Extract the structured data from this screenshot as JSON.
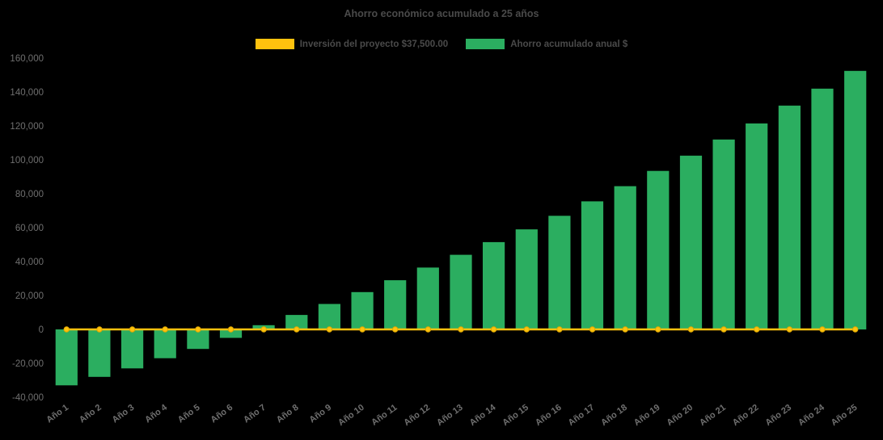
{
  "title": "Ahorro económico acumulado a 25 años",
  "legend": [
    {
      "label": "Inversión del proyecto $37,500.00",
      "color": "#FFC20E"
    },
    {
      "label": "Ahorro acumulado anual $",
      "color": "#2BAE60"
    }
  ],
  "colors": {
    "background": "#000000",
    "title_text": "#4a4a4a",
    "tick_text": "#6f6f6f",
    "bar_green": "#2BAE60",
    "line_yellow": "#FFC20E",
    "line_marker_stroke": "#e0a800"
  },
  "chart_data": {
    "type": "bar",
    "title": "Ahorro económico acumulado a 25 años",
    "categories": [
      "Año 1",
      "Año 2",
      "Año 3",
      "Año 4",
      "Año 5",
      "Año 6",
      "Año 7",
      "Año 8",
      "Año 9",
      "Año 10",
      "Año 11",
      "Año 12",
      "Año 13",
      "Año 14",
      "Año 15",
      "Año 16",
      "Año 17",
      "Año 18",
      "Año 19",
      "Año 20",
      "Año 21",
      "Año 22",
      "Año 23",
      "Año 24",
      "Año 25"
    ],
    "series": [
      {
        "name": "Ahorro acumulado anual $",
        "type": "bar",
        "color": "#2BAE60",
        "values": [
          -33000,
          -28000,
          -23000,
          -17000,
          -11500,
          -5000,
          2500,
          8500,
          15000,
          22000,
          29000,
          36500,
          44000,
          51500,
          59000,
          67000,
          75500,
          84500,
          93500,
          102500,
          112000,
          121500,
          132000,
          142000,
          152500
        ]
      },
      {
        "name": "Inversión del proyecto $37,500.00",
        "type": "line",
        "color": "#FFC20E",
        "values": [
          0,
          0,
          0,
          0,
          0,
          0,
          0,
          0,
          0,
          0,
          0,
          0,
          0,
          0,
          0,
          0,
          0,
          0,
          0,
          0,
          0,
          0,
          0,
          0,
          0
        ]
      }
    ],
    "xlabel": "",
    "ylabel": "",
    "ylim": [
      -40000,
      160000
    ],
    "ytick_step": 20000,
    "grid": false,
    "legend_position": "top"
  }
}
